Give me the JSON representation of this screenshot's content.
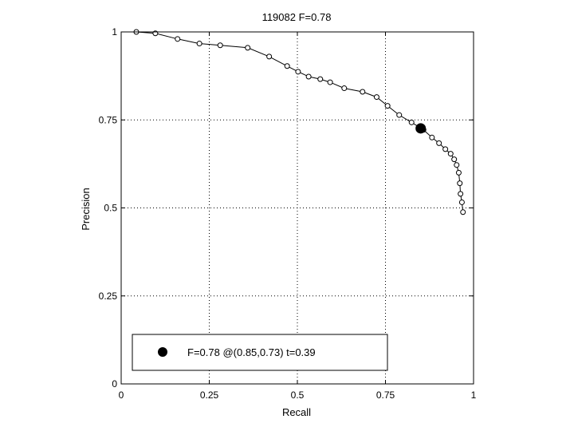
{
  "chart_data": {
    "type": "line",
    "title": "119082 F=0.78",
    "xlabel": "Recall",
    "ylabel": "Precision",
    "xlim": [
      0,
      1
    ],
    "ylim": [
      0,
      1
    ],
    "grid": true,
    "x_ticks": [
      0,
      0.25,
      0.5,
      0.75,
      1
    ],
    "x_tick_labels": [
      "0",
      "0.25",
      "0.5",
      "0.75",
      "1"
    ],
    "y_ticks": [
      0,
      0.25,
      0.5,
      0.75,
      1
    ],
    "y_tick_labels": [
      "0",
      "0.25",
      "0.5",
      "0.75",
      "1"
    ],
    "series": [
      {
        "marker": "open-circle",
        "x": [
          0.043,
          0.097,
          0.16,
          0.222,
          0.281,
          0.359,
          0.42,
          0.471,
          0.502,
          0.532,
          0.565,
          0.593,
          0.633,
          0.685,
          0.725,
          0.756,
          0.789,
          0.824,
          0.858,
          0.882,
          0.902,
          0.92,
          0.935,
          0.945,
          0.952,
          0.958,
          0.961,
          0.963,
          0.967,
          0.97
        ],
        "y": [
          1.0,
          0.996,
          0.98,
          0.967,
          0.962,
          0.955,
          0.93,
          0.903,
          0.887,
          0.873,
          0.866,
          0.857,
          0.84,
          0.83,
          0.815,
          0.79,
          0.764,
          0.743,
          0.722,
          0.7,
          0.684,
          0.667,
          0.654,
          0.638,
          0.622,
          0.6,
          0.57,
          0.54,
          0.516,
          0.488
        ]
      }
    ],
    "highlight": {
      "x": 0.85,
      "y": 0.726,
      "marker": "filled-circle"
    },
    "legend": {
      "position": "bottom-left",
      "label": "F=0.78 @(0.85,0.73) t=0.39"
    }
  }
}
